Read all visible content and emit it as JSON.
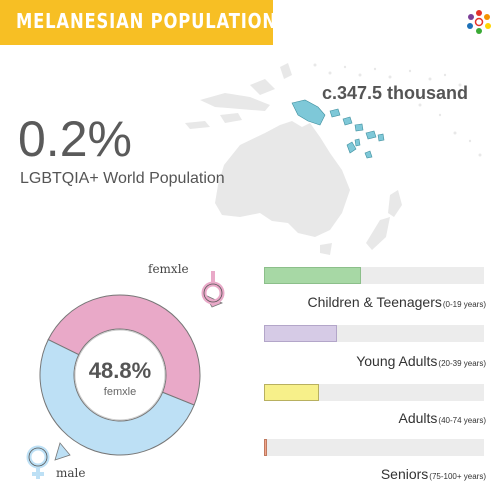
{
  "header": {
    "title": "MELANESIAN POPULATION"
  },
  "logo": {
    "icon": "rainbow-people-icon"
  },
  "map": {
    "region": "Melanesia",
    "highlight_color": "#7ec8d8",
    "land_color": "#e8e8e8"
  },
  "population": {
    "label": "c.347.5 thousand"
  },
  "stats": {
    "percent": "0.2%",
    "percent_label": "LGBTQIA+ World Population"
  },
  "gender": {
    "female_fraction": 0.488,
    "center_value": "48.8%",
    "center_label": "femxle",
    "female_label": "femxle",
    "male_label": "male",
    "female_color": "#e9a9c8",
    "male_color": "#bde0f5"
  },
  "age_groups": [
    {
      "label": "Children & Teenagers",
      "range": "(0-19 years)",
      "fill": 0.44,
      "color": "#a7d8a5",
      "border": "#8cbf8a"
    },
    {
      "label": "Young Adults",
      "range": "(20-39 years)",
      "fill": 0.33,
      "color": "#d6cbe6",
      "border": "#b3a6c9"
    },
    {
      "label": "Adults",
      "range": "(40-74 years)",
      "fill": 0.25,
      "color": "#f7f08a",
      "border": "#b8b060"
    },
    {
      "label": "Seniors",
      "range": "(75-100+ years)",
      "fill": 0.015,
      "color": "#f1a58a",
      "border": "#c07a60"
    }
  ]
}
